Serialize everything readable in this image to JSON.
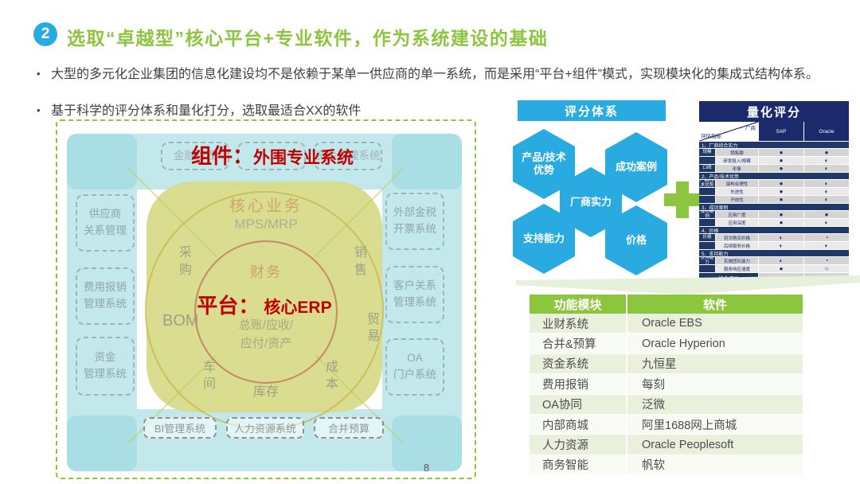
{
  "slide": {
    "badge": "2",
    "title": "选取“卓越型”核心平台+专业软件，作为系统建设的基础",
    "bullets": [
      "大型的多元化企业集团的信息化建设均不是依赖于某单一供应商的单一系统，而是采用“平台+组件”模式，实现模块化的集成式结构体系。",
      "基于科学的评分体系和量化打分，选取最适合XX的软件"
    ],
    "page_number": "8"
  },
  "architecture": {
    "component_prefix": "组件：",
    "component_label": "外围专业系统",
    "platform_prefix": "平台：",
    "platform_label": "核心ERP",
    "top_boxes": [
      "金融管理",
      "",
      "资金管理系统"
    ],
    "left_boxes": [
      "供应商\n关系管理",
      "费用报销\n管理系统",
      "资金\n管理系统"
    ],
    "right_boxes": [
      "外部金税\n开票系统",
      "客户关系\n管理系统",
      "OA\n门户系统"
    ],
    "bottom_boxes": [
      "BI管理系统",
      "人力资源系统",
      "合并预算"
    ],
    "core": {
      "ring_top": "核心业务",
      "ring_top_sub": "MPS/MRP",
      "left_vertical": "采购",
      "right_vertical": "销售",
      "inner_top": "财务",
      "inner_bottom": "总账/应收/\n应付/资产",
      "bom": "BOM",
      "trade": "贸易",
      "workshop": "车间",
      "inventory": "库存",
      "cost": "成本"
    }
  },
  "scoring": {
    "header": "评分体系",
    "hexagons": [
      "产品/技术优势",
      "成功案例",
      "厂商实力",
      "支持能力",
      "价格"
    ]
  },
  "quant": {
    "header": "量化评分",
    "corner_top": "厂商",
    "corner_bottom": "评估指标",
    "vendors": [
      "SAP",
      "Oracle"
    ],
    "sections": [
      {
        "title": "1、厂商综合实力",
        "rows": [
          {
            "group": "规模",
            "label": "销售额",
            "v": [
              "full",
              "full"
            ]
          },
          {
            "group": "",
            "label": "研发投入/规模",
            "v": [
              "full",
              "half"
            ]
          },
          {
            "group": "口碑",
            "label": "形象",
            "v": [
              "full",
              "half"
            ]
          }
        ]
      },
      {
        "title": "2、产品/技术优势",
        "rows": [
          {
            "group": "产品/技术优势",
            "label": "架构合理性",
            "v": [
              "full",
              "half"
            ]
          },
          {
            "group": "",
            "label": "先进性",
            "v": [
              "full",
              "half"
            ]
          },
          {
            "group": "",
            "label": "开放性",
            "v": [
              "full",
              "half"
            ]
          }
        ]
      },
      {
        "title": "3、成功案例",
        "rows": [
          {
            "group": "成功案例",
            "label": "应用广度",
            "v": [
              "full",
              "full"
            ]
          },
          {
            "group": "",
            "label": "应用深度",
            "v": [
              "full",
              "half"
            ]
          }
        ]
      },
      {
        "title": "4、价格",
        "rows": [
          {
            "group": "价格",
            "label": "初次购买价格",
            "v": [
              "half",
              "low"
            ]
          },
          {
            "group": "",
            "label": "后续服务价格",
            "v": [
              "half",
              "half"
            ]
          }
        ]
      },
      {
        "title": "5、支持能力",
        "rows": [
          {
            "group": "支持能力",
            "label": "实施团队能力",
            "v": [
              "half",
              "low"
            ]
          },
          {
            "group": "",
            "label": "服务响应速度",
            "v": [
              "full",
              "none"
            ]
          }
        ]
      }
    ],
    "footer": "综合评价"
  },
  "software_table": {
    "headers": [
      "功能模块",
      "软件"
    ],
    "rows": [
      [
        "业财系统",
        "Oracle EBS"
      ],
      [
        "合并&预算",
        "Oracle Hyperion"
      ],
      [
        "资金系统",
        "九恒星"
      ],
      [
        "费用报销",
        "每刻"
      ],
      [
        "OA协同",
        "泛微"
      ],
      [
        "内部商城",
        "阿里1688网上商城"
      ],
      [
        "人力资源",
        "Oracle Peoplesoft"
      ],
      [
        "商务智能",
        "帆软"
      ]
    ]
  },
  "colors": {
    "accent_green": "#8CC63F",
    "accent_blue": "#29ABE2",
    "navy": "#1B2A6B",
    "red": "#C00000",
    "frame_cyan": "#C2E8EC",
    "core_yellow": "#D8DA8A"
  }
}
